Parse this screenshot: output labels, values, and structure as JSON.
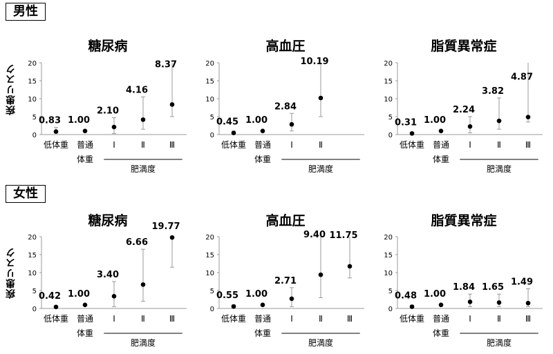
{
  "sections": [
    {
      "label": "男性"
    },
    {
      "label": "女性"
    }
  ],
  "ylabel": "疾患リスク",
  "colors": {
    "point": "#000000",
    "errorbar": "#999999",
    "axis": "#999999"
  },
  "chart_data": [
    {
      "type": "scatter",
      "section": "男性",
      "title": "糖尿病",
      "categories": [
        "低体重\n",
        "普通\n体重",
        "Ⅰ",
        "Ⅱ",
        "Ⅲ"
      ],
      "group_label": "肥満度",
      "values": [
        0.83,
        1.0,
        2.1,
        4.16,
        8.37
      ],
      "value_labels": [
        "0.83",
        "1.00",
        "2.10",
        "4.16",
        "8.37"
      ],
      "ci_low": [
        0.4,
        1.0,
        0.3,
        1.5,
        5.0
      ],
      "ci_high": [
        2.0,
        1.0,
        4.7,
        10.5,
        20.0
      ],
      "ylim": [
        0,
        20
      ],
      "yticks": [
        0,
        5,
        10,
        15,
        20
      ]
    },
    {
      "type": "scatter",
      "section": "男性",
      "title": "高血圧",
      "categories": [
        "低体重\n",
        "普通\n体重",
        "Ⅰ",
        "Ⅱ"
      ],
      "group_label": "肥満度",
      "values": [
        0.45,
        1.0,
        2.84,
        10.19
      ],
      "value_labels": [
        "0.45",
        "1.00",
        "2.84",
        "10.19"
      ],
      "ci_low": [
        0.2,
        1.0,
        1.0,
        5.0
      ],
      "ci_high": [
        1.0,
        1.0,
        5.9,
        20.0
      ],
      "ylim": [
        0,
        20
      ],
      "yticks": [
        0,
        5,
        10,
        15,
        20
      ]
    },
    {
      "type": "scatter",
      "section": "男性",
      "title": "脂質異常症",
      "categories": [
        "低体重\n",
        "普通\n体重",
        "Ⅰ",
        "Ⅱ",
        "Ⅲ"
      ],
      "group_label": "肥満度",
      "values": [
        0.31,
        1.0,
        2.24,
        3.82,
        4.87
      ],
      "value_labels": [
        "0.31",
        "1.00",
        "2.24",
        "3.82",
        "4.87"
      ],
      "ci_low": [
        0.1,
        1.0,
        0.5,
        1.5,
        3.5
      ],
      "ci_high": [
        0.6,
        1.0,
        5.0,
        10.2,
        20.0
      ],
      "ylim": [
        0,
        20
      ],
      "yticks": [
        0,
        5,
        10,
        15,
        20
      ]
    },
    {
      "type": "scatter",
      "section": "女性",
      "title": "糖尿病",
      "categories": [
        "低体重\n",
        "普通\n体重",
        "Ⅰ",
        "Ⅱ",
        "Ⅲ"
      ],
      "group_label": "肥満度",
      "values": [
        0.42,
        1.0,
        3.4,
        6.66,
        19.77
      ],
      "value_labels": [
        "0.42",
        "1.00",
        "3.40",
        "6.66",
        "19.77"
      ],
      "ci_low": [
        0.2,
        1.0,
        0.5,
        2.0,
        11.5
      ],
      "ci_high": [
        0.8,
        1.0,
        7.5,
        16.5,
        20.0
      ],
      "ylim": [
        0,
        20
      ],
      "yticks": [
        0,
        5,
        10,
        15,
        20
      ]
    },
    {
      "type": "scatter",
      "section": "女性",
      "title": "高血圧",
      "categories": [
        "低体重\n",
        "普通\n体重",
        "Ⅰ",
        "Ⅱ",
        "Ⅲ"
      ],
      "group_label": "肥満度",
      "values": [
        0.55,
        1.0,
        2.71,
        9.4,
        11.75
      ],
      "value_labels": [
        "0.55",
        "1.00",
        "2.71",
        "9.40",
        "11.75"
      ],
      "ci_low": [
        0.2,
        1.0,
        0.5,
        3.0,
        8.5
      ],
      "ci_high": [
        1.0,
        1.0,
        5.8,
        20.0,
        20.0
      ],
      "ylim": [
        0,
        20
      ],
      "yticks": [
        0,
        5,
        10,
        15,
        20
      ]
    },
    {
      "type": "scatter",
      "section": "女性",
      "title": "脂質異常症",
      "categories": [
        "低体重\n",
        "普通\n体重",
        "Ⅰ",
        "Ⅱ",
        "Ⅲ"
      ],
      "group_label": "肥満度",
      "values": [
        0.48,
        1.0,
        1.84,
        1.65,
        1.49
      ],
      "value_labels": [
        "0.48",
        "1.00",
        "1.84",
        "1.65",
        "1.49"
      ],
      "ci_low": [
        0.2,
        1.0,
        0.5,
        0.5,
        0.5
      ],
      "ci_high": [
        0.9,
        1.0,
        4.0,
        4.0,
        5.5
      ],
      "ylim": [
        0,
        20
      ],
      "yticks": [
        0,
        5,
        10,
        15,
        20
      ]
    }
  ]
}
